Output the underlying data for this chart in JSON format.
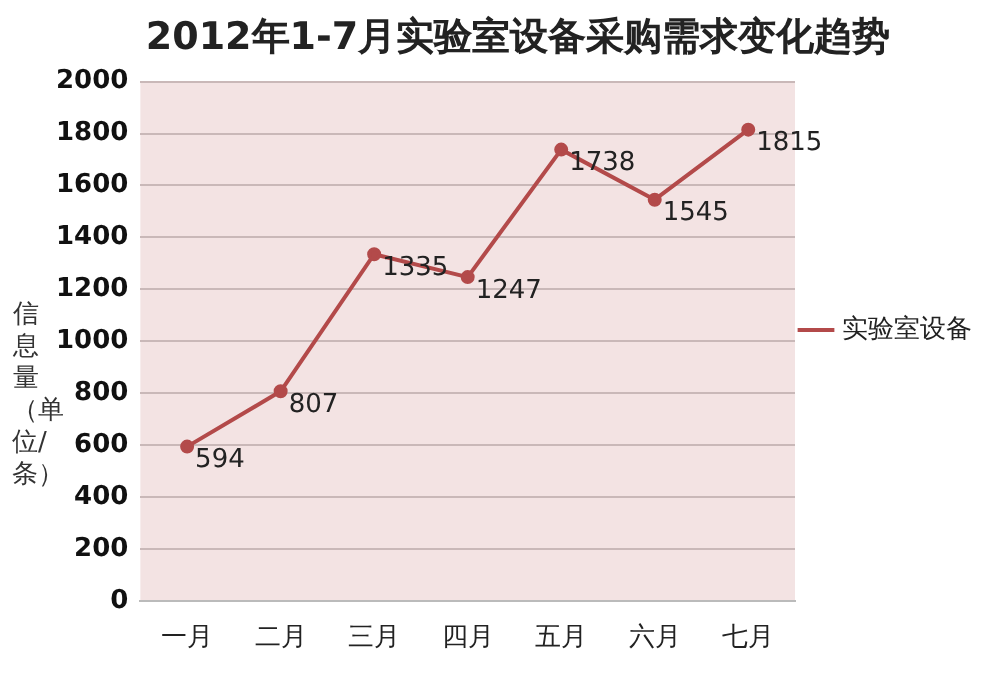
{
  "chart_data": {
    "type": "line",
    "title": "2012年1-7月实验室设备采购需求变化趋势",
    "ylabel": "信息量（单位/条）",
    "categories": [
      "一月",
      "二月",
      "三月",
      "四月",
      "五月",
      "六月",
      "七月"
    ],
    "series": [
      {
        "name": "实验室设备",
        "color": "#b34a4a",
        "values": [
          594,
          807,
          1335,
          1247,
          1738,
          1545,
          1815
        ]
      }
    ],
    "ylim": [
      0,
      2000
    ],
    "yticks": [
      0,
      200,
      400,
      600,
      800,
      1000,
      1200,
      1400,
      1600,
      1800,
      2000
    ],
    "grid": "y",
    "legend": "right",
    "marker": "circle",
    "line_style": "solid",
    "data_labels": true
  }
}
